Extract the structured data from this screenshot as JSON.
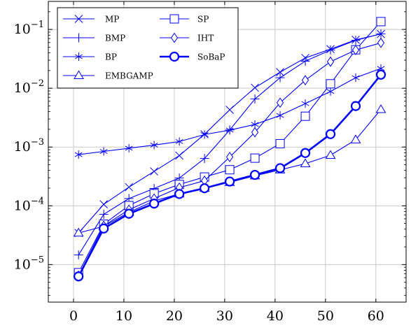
{
  "chart_data": {
    "type": "line",
    "title": "",
    "xlabel": "",
    "ylabel": "",
    "xlim": [
      -5,
      66
    ],
    "ylim": [
      2.3e-06,
      0.3
    ],
    "yscale": "log",
    "grid": true,
    "legend_position": "top-left",
    "legend_columns": 2,
    "color": "#0000ff",
    "x_ticks": [
      0,
      10,
      20,
      30,
      40,
      50,
      60
    ],
    "x_tick_labels": [
      "0",
      "10",
      "20",
      "30",
      "40",
      "50",
      "60"
    ],
    "y_ticks": [
      1e-05,
      0.0001,
      0.001,
      0.01,
      0.1
    ],
    "y_tick_labels": [
      {
        "base": "10",
        "exp": "−5"
      },
      {
        "base": "10",
        "exp": "−4"
      },
      {
        "base": "10",
        "exp": "−3"
      },
      {
        "base": "10",
        "exp": "−2"
      },
      {
        "base": "10",
        "exp": "−1"
      }
    ],
    "x": [
      1,
      6,
      11,
      16,
      21,
      26,
      31,
      36,
      41,
      46,
      51,
      56,
      61
    ],
    "series": [
      {
        "name": "MP",
        "marker": "x",
        "values": [
          3.45e-05,
          0.000106,
          0.000208,
          0.000385,
          0.000716,
          0.00165,
          0.0043,
          0.0102,
          0.0188,
          0.0328,
          0.0463,
          0.0667,
          0.0836
        ]
      },
      {
        "name": "BMP",
        "marker": "plus",
        "values": [
          1.46e-05,
          7.17e-05,
          0.000133,
          0.000197,
          0.000297,
          0.000638,
          0.00195,
          0.00656,
          0.0151,
          0.0289,
          0.0446,
          0.0653,
          0.0843
        ]
      },
      {
        "name": "BP",
        "marker": "asterisk",
        "values": [
          0.000743,
          0.000842,
          0.000955,
          0.00108,
          0.00124,
          0.00163,
          0.00194,
          0.00242,
          0.00345,
          0.00548,
          0.00881,
          0.0151,
          0.0217
        ]
      },
      {
        "name": "EMBGAMP",
        "marker": "triangle",
        "values": [
          3.45e-05,
          4.48e-05,
          7.76e-05,
          0.000121,
          0.00016,
          0.000199,
          0.000251,
          0.000324,
          0.000409,
          0.000521,
          0.000724,
          0.00133,
          0.00436
        ]
      },
      {
        "name": "SP",
        "marker": "square",
        "values": [
          7.3e-06,
          4.87e-05,
          0.000101,
          0.000161,
          0.000231,
          0.000309,
          0.000411,
          0.000647,
          0.00114,
          0.00334,
          0.0119,
          0.0451,
          0.136
        ]
      },
      {
        "name": "IHT",
        "marker": "diamond",
        "values": [
          6.5e-06,
          4.58e-05,
          8.59e-05,
          0.000133,
          0.000204,
          0.000267,
          0.000676,
          0.00178,
          0.00567,
          0.0137,
          0.0283,
          0.0447,
          0.0591
        ]
      },
      {
        "name": "SoBaP",
        "marker": "circle",
        "bold": true,
        "values": [
          6.3e-06,
          4.11e-05,
          7.33e-05,
          0.000109,
          0.000159,
          0.000199,
          0.000259,
          0.000336,
          0.000437,
          0.000791,
          0.00166,
          0.00498,
          0.017
        ]
      }
    ]
  }
}
